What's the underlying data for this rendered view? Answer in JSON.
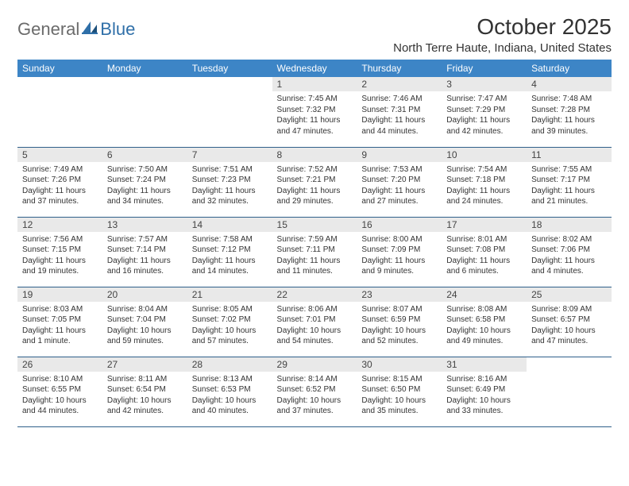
{
  "logo": {
    "word1": "General",
    "word2": "Blue"
  },
  "title": "October 2025",
  "location": "North Terre Haute, Indiana, United States",
  "colors": {
    "header_bg": "#3d85c6",
    "header_fg": "#ffffff",
    "daynum_bg": "#e9e9e9",
    "row_border": "#2f5f8a",
    "logo_grey": "#6b6b6b",
    "logo_blue": "#2f6fa8"
  },
  "weekdays": [
    "Sunday",
    "Monday",
    "Tuesday",
    "Wednesday",
    "Thursday",
    "Friday",
    "Saturday"
  ],
  "weeks": [
    [
      {
        "n": "",
        "sunrise": "",
        "sunset": "",
        "daylight": ""
      },
      {
        "n": "",
        "sunrise": "",
        "sunset": "",
        "daylight": ""
      },
      {
        "n": "",
        "sunrise": "",
        "sunset": "",
        "daylight": ""
      },
      {
        "n": "1",
        "sunrise": "Sunrise: 7:45 AM",
        "sunset": "Sunset: 7:32 PM",
        "daylight": "Daylight: 11 hours and 47 minutes."
      },
      {
        "n": "2",
        "sunrise": "Sunrise: 7:46 AM",
        "sunset": "Sunset: 7:31 PM",
        "daylight": "Daylight: 11 hours and 44 minutes."
      },
      {
        "n": "3",
        "sunrise": "Sunrise: 7:47 AM",
        "sunset": "Sunset: 7:29 PM",
        "daylight": "Daylight: 11 hours and 42 minutes."
      },
      {
        "n": "4",
        "sunrise": "Sunrise: 7:48 AM",
        "sunset": "Sunset: 7:28 PM",
        "daylight": "Daylight: 11 hours and 39 minutes."
      }
    ],
    [
      {
        "n": "5",
        "sunrise": "Sunrise: 7:49 AM",
        "sunset": "Sunset: 7:26 PM",
        "daylight": "Daylight: 11 hours and 37 minutes."
      },
      {
        "n": "6",
        "sunrise": "Sunrise: 7:50 AM",
        "sunset": "Sunset: 7:24 PM",
        "daylight": "Daylight: 11 hours and 34 minutes."
      },
      {
        "n": "7",
        "sunrise": "Sunrise: 7:51 AM",
        "sunset": "Sunset: 7:23 PM",
        "daylight": "Daylight: 11 hours and 32 minutes."
      },
      {
        "n": "8",
        "sunrise": "Sunrise: 7:52 AM",
        "sunset": "Sunset: 7:21 PM",
        "daylight": "Daylight: 11 hours and 29 minutes."
      },
      {
        "n": "9",
        "sunrise": "Sunrise: 7:53 AM",
        "sunset": "Sunset: 7:20 PM",
        "daylight": "Daylight: 11 hours and 27 minutes."
      },
      {
        "n": "10",
        "sunrise": "Sunrise: 7:54 AM",
        "sunset": "Sunset: 7:18 PM",
        "daylight": "Daylight: 11 hours and 24 minutes."
      },
      {
        "n": "11",
        "sunrise": "Sunrise: 7:55 AM",
        "sunset": "Sunset: 7:17 PM",
        "daylight": "Daylight: 11 hours and 21 minutes."
      }
    ],
    [
      {
        "n": "12",
        "sunrise": "Sunrise: 7:56 AM",
        "sunset": "Sunset: 7:15 PM",
        "daylight": "Daylight: 11 hours and 19 minutes."
      },
      {
        "n": "13",
        "sunrise": "Sunrise: 7:57 AM",
        "sunset": "Sunset: 7:14 PM",
        "daylight": "Daylight: 11 hours and 16 minutes."
      },
      {
        "n": "14",
        "sunrise": "Sunrise: 7:58 AM",
        "sunset": "Sunset: 7:12 PM",
        "daylight": "Daylight: 11 hours and 14 minutes."
      },
      {
        "n": "15",
        "sunrise": "Sunrise: 7:59 AM",
        "sunset": "Sunset: 7:11 PM",
        "daylight": "Daylight: 11 hours and 11 minutes."
      },
      {
        "n": "16",
        "sunrise": "Sunrise: 8:00 AM",
        "sunset": "Sunset: 7:09 PM",
        "daylight": "Daylight: 11 hours and 9 minutes."
      },
      {
        "n": "17",
        "sunrise": "Sunrise: 8:01 AM",
        "sunset": "Sunset: 7:08 PM",
        "daylight": "Daylight: 11 hours and 6 minutes."
      },
      {
        "n": "18",
        "sunrise": "Sunrise: 8:02 AM",
        "sunset": "Sunset: 7:06 PM",
        "daylight": "Daylight: 11 hours and 4 minutes."
      }
    ],
    [
      {
        "n": "19",
        "sunrise": "Sunrise: 8:03 AM",
        "sunset": "Sunset: 7:05 PM",
        "daylight": "Daylight: 11 hours and 1 minute."
      },
      {
        "n": "20",
        "sunrise": "Sunrise: 8:04 AM",
        "sunset": "Sunset: 7:04 PM",
        "daylight": "Daylight: 10 hours and 59 minutes."
      },
      {
        "n": "21",
        "sunrise": "Sunrise: 8:05 AM",
        "sunset": "Sunset: 7:02 PM",
        "daylight": "Daylight: 10 hours and 57 minutes."
      },
      {
        "n": "22",
        "sunrise": "Sunrise: 8:06 AM",
        "sunset": "Sunset: 7:01 PM",
        "daylight": "Daylight: 10 hours and 54 minutes."
      },
      {
        "n": "23",
        "sunrise": "Sunrise: 8:07 AM",
        "sunset": "Sunset: 6:59 PM",
        "daylight": "Daylight: 10 hours and 52 minutes."
      },
      {
        "n": "24",
        "sunrise": "Sunrise: 8:08 AM",
        "sunset": "Sunset: 6:58 PM",
        "daylight": "Daylight: 10 hours and 49 minutes."
      },
      {
        "n": "25",
        "sunrise": "Sunrise: 8:09 AM",
        "sunset": "Sunset: 6:57 PM",
        "daylight": "Daylight: 10 hours and 47 minutes."
      }
    ],
    [
      {
        "n": "26",
        "sunrise": "Sunrise: 8:10 AM",
        "sunset": "Sunset: 6:55 PM",
        "daylight": "Daylight: 10 hours and 44 minutes."
      },
      {
        "n": "27",
        "sunrise": "Sunrise: 8:11 AM",
        "sunset": "Sunset: 6:54 PM",
        "daylight": "Daylight: 10 hours and 42 minutes."
      },
      {
        "n": "28",
        "sunrise": "Sunrise: 8:13 AM",
        "sunset": "Sunset: 6:53 PM",
        "daylight": "Daylight: 10 hours and 40 minutes."
      },
      {
        "n": "29",
        "sunrise": "Sunrise: 8:14 AM",
        "sunset": "Sunset: 6:52 PM",
        "daylight": "Daylight: 10 hours and 37 minutes."
      },
      {
        "n": "30",
        "sunrise": "Sunrise: 8:15 AM",
        "sunset": "Sunset: 6:50 PM",
        "daylight": "Daylight: 10 hours and 35 minutes."
      },
      {
        "n": "31",
        "sunrise": "Sunrise: 8:16 AM",
        "sunset": "Sunset: 6:49 PM",
        "daylight": "Daylight: 10 hours and 33 minutes."
      },
      {
        "n": "",
        "sunrise": "",
        "sunset": "",
        "daylight": ""
      }
    ]
  ]
}
